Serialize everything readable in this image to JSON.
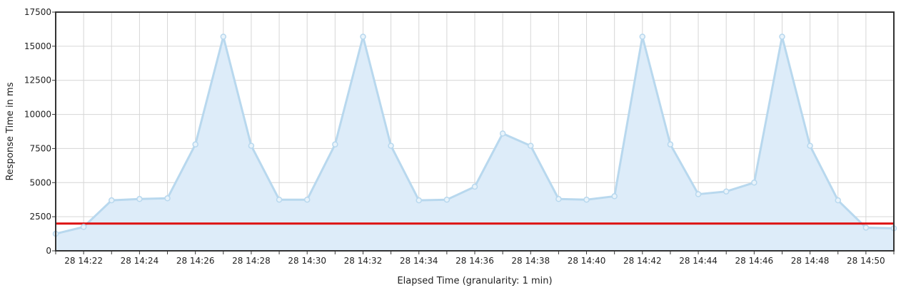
{
  "chart_data": {
    "type": "area",
    "xlabel": "Elapsed Time (granularity: 1 min)",
    "ylabel": "Response Time in ms",
    "ylim": [
      0,
      17500
    ],
    "y_ticks": [
      0,
      2500,
      5000,
      7500,
      10000,
      12500,
      15000,
      17500
    ],
    "x_tick_labels": [
      "28 14:22",
      "28 14:24",
      "28 14:26",
      "28 14:28",
      "28 14:30",
      "28 14:32",
      "28 14:34",
      "28 14:36",
      "28 14:38",
      "28 14:40",
      "28 14:42",
      "28 14:44",
      "28 14:46",
      "28 14:48",
      "28 14:50"
    ],
    "x_range": [
      "14:21",
      "14:51"
    ],
    "grid": true,
    "series": [
      {
        "x": [
          "14:21",
          "14:22",
          "14:23",
          "14:24",
          "14:25",
          "14:26",
          "14:27",
          "14:28",
          "14:29",
          "14:30",
          "14:31",
          "14:32",
          "14:33",
          "14:34",
          "14:35",
          "14:36",
          "14:37",
          "14:38",
          "14:39",
          "14:40",
          "14:41",
          "14:42",
          "14:43",
          "14:44",
          "14:45",
          "14:46",
          "14:47",
          "14:48",
          "14:49",
          "14:50",
          "14:51"
        ],
        "values": [
          1250,
          1750,
          3700,
          3800,
          3850,
          7800,
          15700,
          7700,
          3750,
          3750,
          7800,
          15700,
          7700,
          3700,
          3750,
          4700,
          8600,
          7700,
          3800,
          3750,
          4000,
          15700,
          7800,
          4150,
          4350,
          5000,
          15700,
          7700,
          3700,
          1700,
          1650
        ],
        "line_color": "#b8d8ee",
        "fill_color": "#ddecf9",
        "marker_fill": "#e8f3fb"
      }
    ],
    "threshold": {
      "value": 2000,
      "color": "#dd1111"
    },
    "colors": {
      "grid": "#d6d6d6",
      "frame": "#333333"
    }
  }
}
